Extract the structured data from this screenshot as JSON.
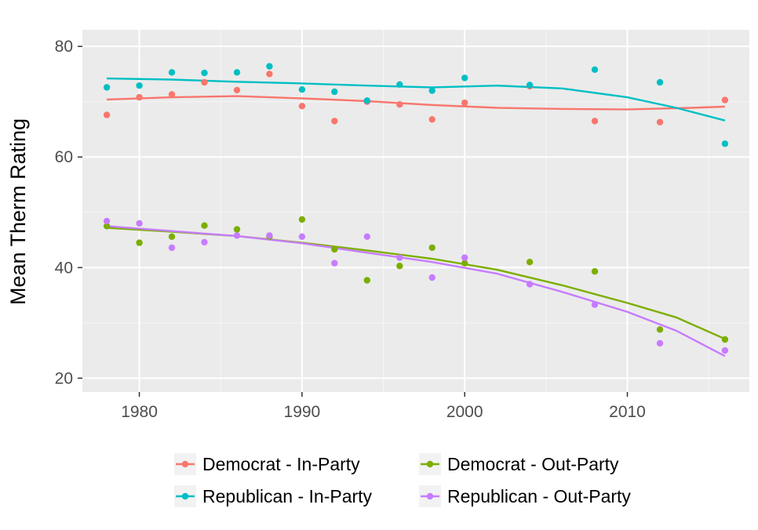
{
  "chart_data": {
    "type": "scatter",
    "title": "",
    "xlabel": "",
    "ylabel": "Mean Therm Rating",
    "xlim": [
      1976.5,
      2017.5
    ],
    "ylim": [
      17.5,
      83
    ],
    "x_ticks": [
      1980,
      1990,
      2000,
      2010
    ],
    "y_ticks": [
      20,
      40,
      60,
      80
    ],
    "x_tick_labels": [
      "1980",
      "1990",
      "2000",
      "2010"
    ],
    "y_tick_labels": [
      "20",
      "40",
      "60",
      "80"
    ],
    "grid": true,
    "legend_position": "bottom",
    "series": [
      {
        "name": "Democrat - In-Party",
        "color": "#F8766D",
        "points": [
          [
            1978,
            67.6
          ],
          [
            1980,
            70.8
          ],
          [
            1982,
            71.3
          ],
          [
            1984,
            73.5
          ],
          [
            1986,
            72.1
          ],
          [
            1988,
            75.0
          ],
          [
            1990,
            69.2
          ],
          [
            1992,
            66.5
          ],
          [
            1994,
            70.0
          ],
          [
            1996,
            69.5
          ],
          [
            1998,
            66.8
          ],
          [
            2000,
            69.8
          ],
          [
            2004,
            72.8
          ],
          [
            2008,
            66.5
          ],
          [
            2012,
            66.3
          ],
          [
            2016,
            70.3
          ]
        ],
        "trend": [
          [
            1978,
            70.4
          ],
          [
            1982,
            70.8
          ],
          [
            1986,
            71.0
          ],
          [
            1990,
            70.6
          ],
          [
            1994,
            70.1
          ],
          [
            1998,
            69.4
          ],
          [
            2002,
            68.9
          ],
          [
            2006,
            68.7
          ],
          [
            2010,
            68.6
          ],
          [
            2014,
            68.9
          ],
          [
            2016,
            69.1
          ]
        ]
      },
      {
        "name": "Republican - In-Party",
        "color": "#00BFC4",
        "points": [
          [
            1978,
            72.6
          ],
          [
            1980,
            72.9
          ],
          [
            1982,
            75.3
          ],
          [
            1984,
            75.2
          ],
          [
            1986,
            75.3
          ],
          [
            1988,
            76.4
          ],
          [
            1990,
            72.2
          ],
          [
            1992,
            71.8
          ],
          [
            1994,
            70.2
          ],
          [
            1996,
            73.1
          ],
          [
            1998,
            72.0
          ],
          [
            2000,
            74.3
          ],
          [
            2004,
            73.0
          ],
          [
            2008,
            75.8
          ],
          [
            2012,
            73.5
          ],
          [
            2016,
            62.4
          ]
        ],
        "trend": [
          [
            1978,
            74.2
          ],
          [
            1982,
            74.0
          ],
          [
            1986,
            73.6
          ],
          [
            1990,
            73.3
          ],
          [
            1994,
            72.9
          ],
          [
            1998,
            72.6
          ],
          [
            2002,
            72.9
          ],
          [
            2006,
            72.4
          ],
          [
            2010,
            70.8
          ],
          [
            2013,
            68.9
          ],
          [
            2016,
            66.6
          ]
        ]
      },
      {
        "name": "Democrat - Out-Party",
        "color": "#7CAE00",
        "points": [
          [
            1978,
            47.5
          ],
          [
            1980,
            44.5
          ],
          [
            1982,
            45.6
          ],
          [
            1984,
            47.6
          ],
          [
            1986,
            46.9
          ],
          [
            1988,
            45.6
          ],
          [
            1990,
            48.7
          ],
          [
            1992,
            43.3
          ],
          [
            1994,
            37.7
          ],
          [
            1996,
            40.3
          ],
          [
            1998,
            43.6
          ],
          [
            2000,
            40.8
          ],
          [
            2004,
            41.0
          ],
          [
            2008,
            39.3
          ],
          [
            2012,
            28.8
          ],
          [
            2016,
            27.0
          ]
        ],
        "trend": [
          [
            1978,
            47.2
          ],
          [
            1982,
            46.5
          ],
          [
            1986,
            45.7
          ],
          [
            1990,
            44.5
          ],
          [
            1994,
            43.1
          ],
          [
            1998,
            41.6
          ],
          [
            2002,
            39.6
          ],
          [
            2006,
            36.8
          ],
          [
            2010,
            33.6
          ],
          [
            2013,
            31.0
          ],
          [
            2016,
            27.1
          ]
        ]
      },
      {
        "name": "Republican - Out-Party",
        "color": "#C77CFF",
        "points": [
          [
            1978,
            48.4
          ],
          [
            1980,
            48.0
          ],
          [
            1982,
            43.6
          ],
          [
            1984,
            44.6
          ],
          [
            1986,
            45.8
          ],
          [
            1988,
            45.8
          ],
          [
            1990,
            45.6
          ],
          [
            1992,
            40.8
          ],
          [
            1994,
            45.6
          ],
          [
            1996,
            41.8
          ],
          [
            1998,
            38.2
          ],
          [
            2000,
            41.8
          ],
          [
            2004,
            37.0
          ],
          [
            2008,
            33.3
          ],
          [
            2012,
            26.3
          ],
          [
            2016,
            25.0
          ]
        ],
        "trend": [
          [
            1978,
            47.5
          ],
          [
            1982,
            46.6
          ],
          [
            1986,
            45.7
          ],
          [
            1990,
            44.4
          ],
          [
            1994,
            42.7
          ],
          [
            1998,
            41.0
          ],
          [
            2002,
            38.9
          ],
          [
            2006,
            35.6
          ],
          [
            2010,
            32.0
          ],
          [
            2013,
            28.6
          ],
          [
            2016,
            24.0
          ]
        ]
      }
    ]
  }
}
